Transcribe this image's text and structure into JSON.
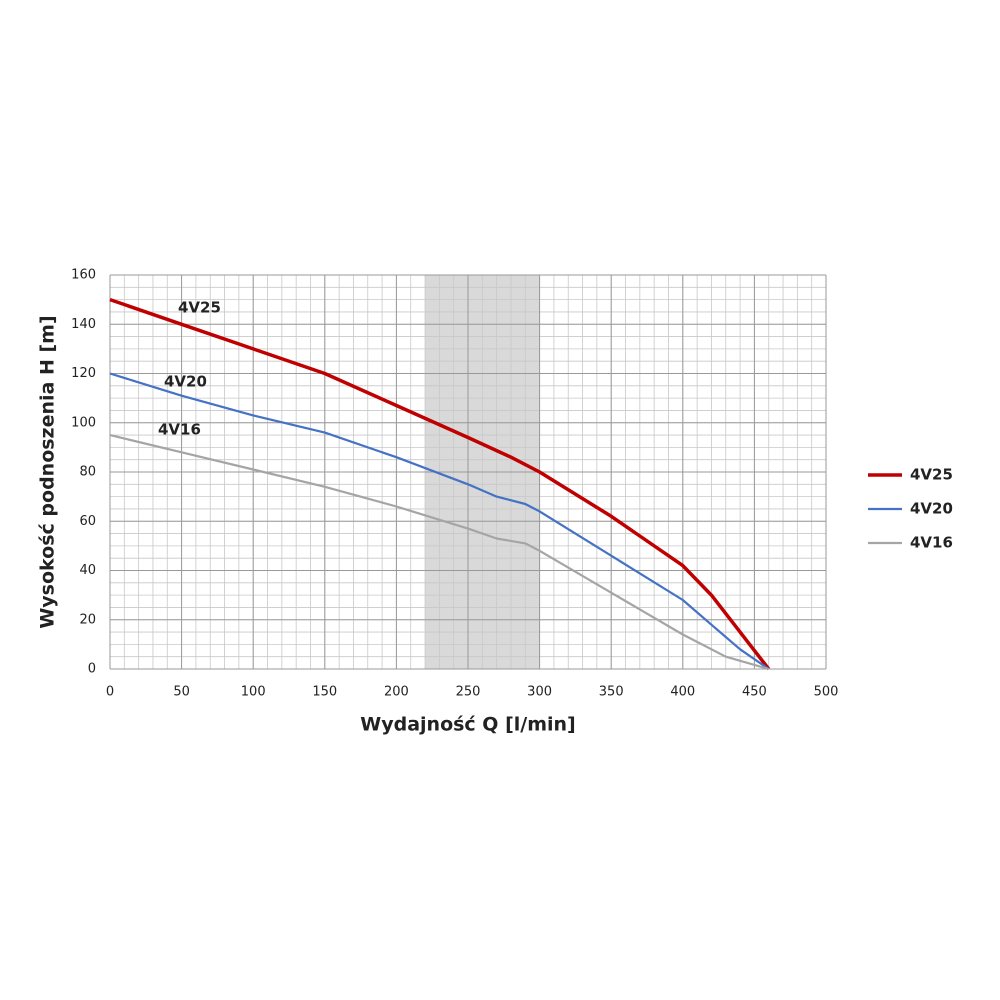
{
  "chart_data": {
    "type": "line",
    "x_label": "Wydajność Q [l/min]",
    "y_label": "Wysokość podnoszenia H [m]",
    "series": [
      {
        "name": "4V25",
        "color": "#c00000",
        "x": [
          0,
          50,
          100,
          150,
          200,
          250,
          280,
          300,
          350,
          400,
          420,
          440,
          460
        ],
        "values": [
          150,
          140,
          130,
          120,
          107,
          94,
          86,
          80,
          62,
          42,
          30,
          15,
          0
        ]
      },
      {
        "name": "4V20",
        "color": "#4472c4",
        "x": [
          0,
          50,
          100,
          150,
          200,
          250,
          270,
          290,
          300,
          350,
          400,
          420,
          440,
          460
        ],
        "values": [
          120,
          111,
          103,
          96,
          86,
          75,
          70,
          67,
          64,
          46,
          28,
          18,
          8,
          0
        ]
      },
      {
        "name": "4V16",
        "color": "#a5a5a5",
        "x": [
          0,
          50,
          100,
          150,
          200,
          250,
          270,
          290,
          300,
          350,
          400,
          430,
          460
        ],
        "values": [
          95,
          88,
          81,
          74,
          66,
          57,
          53,
          51,
          48,
          31,
          14,
          5,
          0
        ]
      }
    ],
    "xlim": [
      0,
      500
    ],
    "xticks": [
      0,
      50,
      100,
      150,
      200,
      250,
      300,
      350,
      400,
      450,
      500
    ],
    "ylim": [
      0,
      160
    ],
    "yticks": [
      0,
      20,
      40,
      60,
      80,
      100,
      120,
      140,
      160
    ],
    "grid": true,
    "x_minor_step": 10,
    "y_minor_step": 5,
    "shaded_range": [
      220,
      300
    ],
    "shaded_color": "#d9d9d9",
    "legend": "right"
  }
}
